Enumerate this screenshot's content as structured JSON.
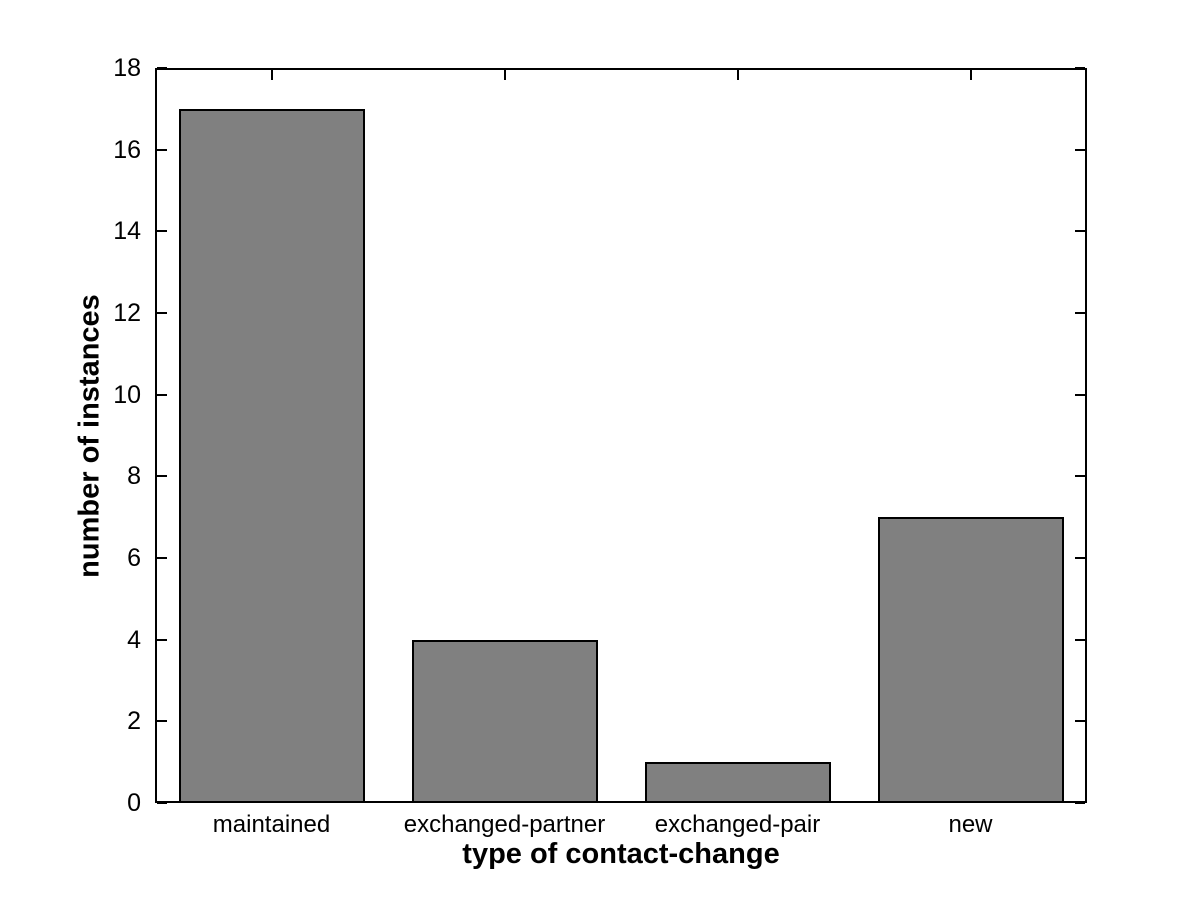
{
  "chart_data": {
    "type": "bar",
    "title": "",
    "categories": [
      "maintained",
      "exchanged-partner",
      "exchanged-pair",
      "new"
    ],
    "values": [
      17,
      4,
      1,
      7
    ],
    "xlabel": "type of contact-change",
    "ylabel": "number of instances",
    "ylim": [
      0,
      18
    ],
    "ytick_step": 2,
    "yticks": [
      0,
      2,
      4,
      6,
      8,
      10,
      12,
      14,
      16,
      18
    ],
    "bar_width_fraction": 0.8,
    "grid": false,
    "legend": "none",
    "colors": {
      "bar_fill": "#808080",
      "bar_edge": "#000000",
      "axis": "#000000",
      "background": "#ffffff",
      "text": "#000000"
    }
  }
}
